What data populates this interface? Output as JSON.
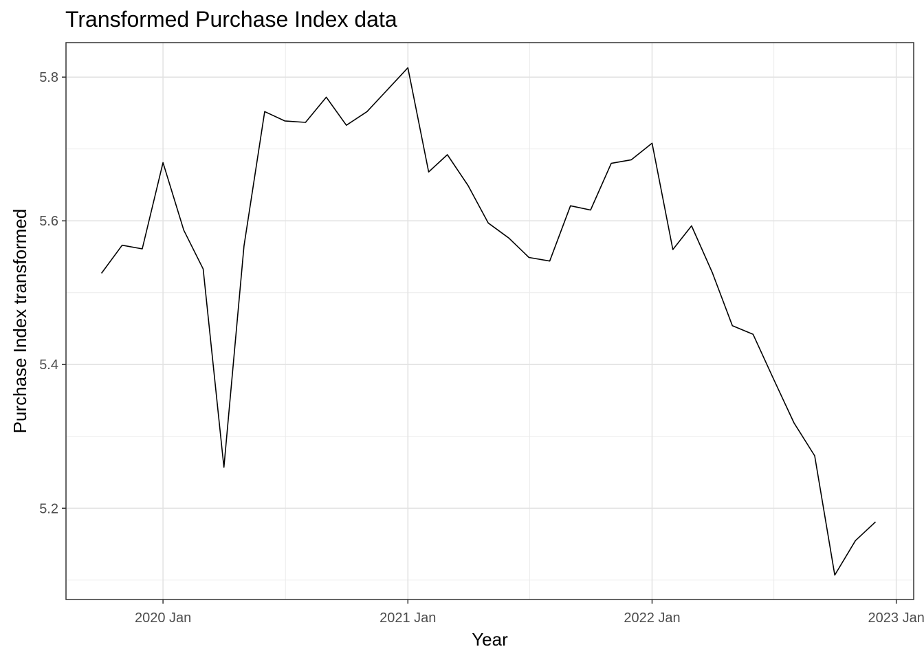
{
  "chart_data": {
    "type": "line",
    "title": "Transformed Purchase Index data",
    "xlabel": "Year",
    "ylabel": "Purchase Index transformed",
    "x_tick_labels": [
      "2020 Jan",
      "2021 Jan",
      "2022 Jan",
      "2023 Jan"
    ],
    "y_tick_labels": [
      "5.2",
      "5.4",
      "5.6",
      "5.8"
    ],
    "y_ticks": [
      5.2,
      5.4,
      5.6,
      5.8
    ],
    "ylim": [
      5.073,
      5.848
    ],
    "xlim": [
      "2019-08-09",
      "2023-01-27"
    ],
    "grid": true,
    "line_color": "#000000",
    "x": [
      "2019-10",
      "2019-11",
      "2019-12",
      "2020-01",
      "2020-02",
      "2020-03",
      "2020-04",
      "2020-05",
      "2020-06",
      "2020-07",
      "2020-08",
      "2020-09",
      "2020-10",
      "2020-11",
      "2020-12",
      "2021-01",
      "2021-02",
      "2021-03",
      "2021-04",
      "2021-05",
      "2021-06",
      "2021-07",
      "2021-08",
      "2021-09",
      "2021-10",
      "2021-11",
      "2021-12",
      "2022-01",
      "2022-02",
      "2022-03",
      "2022-04",
      "2022-05",
      "2022-06",
      "2022-07",
      "2022-08",
      "2022-09",
      "2022-10",
      "2022-11",
      "2022-12"
    ],
    "values": [
      5.527,
      5.566,
      5.561,
      5.681,
      5.587,
      5.533,
      5.257,
      5.565,
      5.752,
      5.739,
      5.737,
      5.772,
      5.733,
      5.752,
      5.782,
      5.813,
      5.668,
      5.692,
      5.649,
      5.597,
      5.576,
      5.549,
      5.544,
      5.621,
      5.615,
      5.68,
      5.685,
      5.708,
      5.56,
      5.593,
      5.528,
      5.454,
      5.442,
      5.381,
      5.319,
      5.273,
      5.107,
      5.155,
      5.181
    ]
  }
}
